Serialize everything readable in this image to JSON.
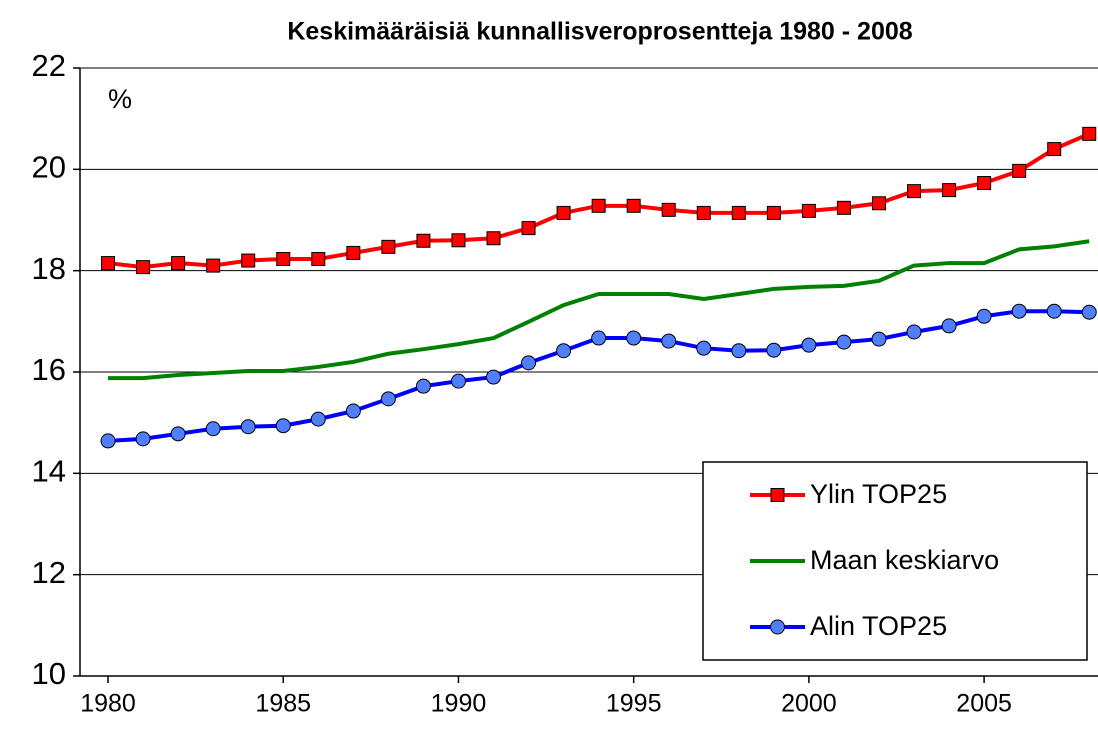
{
  "chart_data": {
    "type": "line",
    "title": "Keskimääräisiä kunnallisveroprosentteja 1980 - 2008",
    "y_unit_label": "%",
    "x": [
      1980,
      1981,
      1982,
      1983,
      1984,
      1985,
      1986,
      1987,
      1988,
      1989,
      1990,
      1991,
      1992,
      1993,
      1994,
      1995,
      1996,
      1997,
      1998,
      1999,
      2000,
      2001,
      2002,
      2003,
      2004,
      2005,
      2006,
      2007,
      2008
    ],
    "series": [
      {
        "name": "Ylin TOP25",
        "color": "#ff0000",
        "line_color": "#ff0000",
        "marker": "square",
        "values": [
          18.15,
          18.07,
          18.15,
          18.1,
          18.2,
          18.23,
          18.23,
          18.35,
          18.47,
          18.59,
          18.6,
          18.64,
          18.84,
          19.14,
          19.28,
          19.28,
          19.2,
          19.14,
          19.14,
          19.14,
          19.18,
          19.24,
          19.33,
          19.57,
          19.59,
          19.73,
          19.97,
          20.4,
          20.7
        ]
      },
      {
        "name": "Maan keskiarvo",
        "color": "#008000",
        "line_color": "#008000",
        "marker": "none",
        "values": [
          15.88,
          15.88,
          15.94,
          15.98,
          16.02,
          16.02,
          16.1,
          16.2,
          16.36,
          16.45,
          16.55,
          16.67,
          16.99,
          17.32,
          17.54,
          17.54,
          17.54,
          17.44,
          17.54,
          17.64,
          17.68,
          17.7,
          17.8,
          18.1,
          18.15,
          18.15,
          18.42,
          18.48,
          18.58
        ]
      },
      {
        "name": "Alin TOP25",
        "color": "#4f7fff",
        "line_color": "#0000ff",
        "marker": "circle",
        "values": [
          14.64,
          14.68,
          14.78,
          14.88,
          14.92,
          14.94,
          15.07,
          15.23,
          15.47,
          15.72,
          15.82,
          15.9,
          16.18,
          16.42,
          16.67,
          16.67,
          16.61,
          16.47,
          16.42,
          16.43,
          16.53,
          16.59,
          16.65,
          16.79,
          16.91,
          17.1,
          17.2,
          17.2,
          17.18
        ]
      }
    ],
    "xlim": [
      1979.2,
      2008.25
    ],
    "xticks": [
      1980,
      1985,
      1990,
      1995,
      2000,
      2005
    ],
    "ylim": [
      10,
      22
    ],
    "yticks": [
      10,
      12,
      14,
      16,
      18,
      20,
      22
    ],
    "grid": true,
    "legend": "lower right"
  }
}
